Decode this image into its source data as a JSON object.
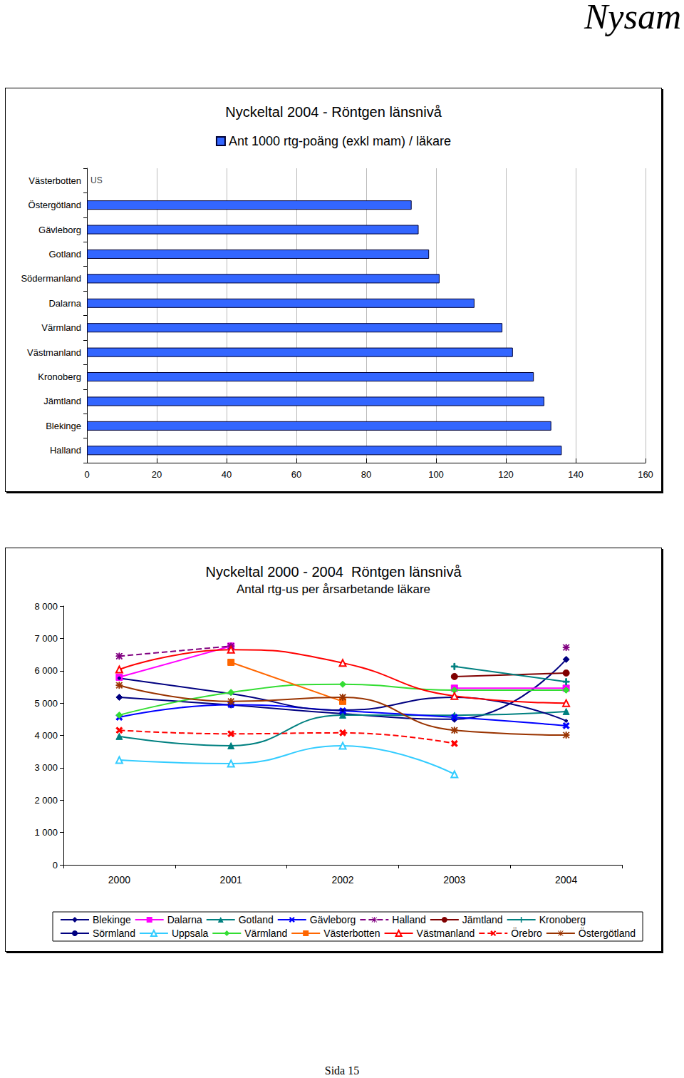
{
  "page": {
    "header": "Nysam",
    "footer": "Sida 15"
  },
  "chart_data": [
    {
      "type": "bar",
      "orientation": "horizontal",
      "title": "Nyckeltal 2004 - Röntgen länsnivå",
      "categories": [
        "Västerbotten",
        "Östergötland",
        "Gävleborg",
        "Gotland",
        "Södermanland",
        "Dalarna",
        "Värmland",
        "Västmanland",
        "Kronoberg",
        "Jämtland",
        "Blekinge",
        "Halland"
      ],
      "series": [
        {
          "name": "Ant 1000 rtg-poäng (exkl mam) / läkare",
          "color": "#3366ff",
          "values": [
            null,
            93,
            95,
            98,
            101,
            111,
            119,
            122,
            128,
            131,
            133,
            136
          ]
        }
      ],
      "annotations": [
        {
          "category": "Västerbotten",
          "text": "US"
        }
      ],
      "xlim": [
        0,
        160
      ],
      "xticks": [
        0,
        20,
        40,
        60,
        80,
        100,
        120,
        140,
        160
      ],
      "grid": true,
      "legend": "top"
    },
    {
      "type": "line",
      "title": "Nyckeltal 2000 - 2004  Röntgen länsnivå",
      "subtitle": "Antal rtg-us per årsarbetande läkare",
      "categories": [
        "2000",
        "2001",
        "2002",
        "2003",
        "2004"
      ],
      "series": [
        {
          "name": "Blekinge",
          "color": "#000080",
          "marker": "diamond",
          "line_style": "solid",
          "values": [
            5180,
            4940,
            4670,
            4500,
            6350
          ]
        },
        {
          "name": "Dalarna",
          "color": "#ff00ff",
          "marker": "square",
          "line_style": "solid",
          "values": [
            5800,
            6760,
            null,
            5460,
            5460
          ]
        },
        {
          "name": "Gotland",
          "color": "#008080",
          "marker": "triangle",
          "line_style": "solid",
          "values": [
            3970,
            3680,
            4630,
            4620,
            4740
          ]
        },
        {
          "name": "Gävleborg",
          "color": "#0000ff",
          "marker": "x",
          "line_style": "solid",
          "values": [
            4560,
            4950,
            4760,
            4560,
            4300
          ]
        },
        {
          "name": "Halland",
          "color": "#800080",
          "marker": "star",
          "line_style": "dashed",
          "values": [
            6450,
            6760,
            null,
            null,
            6720
          ]
        },
        {
          "name": "Jämtland",
          "color": "#800000",
          "marker": "circle",
          "line_style": "solid",
          "values": [
            null,
            null,
            null,
            5820,
            5930
          ]
        },
        {
          "name": "Kronoberg",
          "color": "#008080",
          "marker": "plus",
          "line_style": "solid",
          "values": [
            null,
            null,
            null,
            6130,
            5660
          ]
        },
        {
          "name": "Sörmland",
          "color": "#000080",
          "marker": "dot",
          "line_style": "solid",
          "values": [
            5770,
            5290,
            4780,
            5180,
            4450
          ]
        },
        {
          "name": "Uppsala",
          "color": "#33ccff",
          "marker": "triangle_open",
          "line_style": "solid",
          "values": [
            3240,
            3130,
            3680,
            2800,
            null
          ]
        },
        {
          "name": "Värmland",
          "color": "#33dd33",
          "marker": "diamond",
          "line_style": "solid",
          "values": [
            4630,
            5330,
            5580,
            5400,
            5400
          ]
        },
        {
          "name": "Västerbotten",
          "color": "#ff6600",
          "marker": "square",
          "line_style": "solid",
          "values": [
            null,
            6260,
            5050,
            null,
            null
          ]
        },
        {
          "name": "Västmanland",
          "color": "#ff0000",
          "marker": "triangle_open",
          "line_style": "solid",
          "values": [
            6040,
            6650,
            6240,
            5220,
            5000
          ]
        },
        {
          "name": "Örebro",
          "color": "#ff0000",
          "marker": "x",
          "line_style": "dashed",
          "values": [
            4160,
            4050,
            4080,
            3750,
            null
          ]
        },
        {
          "name": "Östergötland",
          "color": "#993300",
          "marker": "star",
          "line_style": "solid",
          "values": [
            5550,
            5050,
            5180,
            4160,
            4010
          ]
        }
      ],
      "ylim": [
        0,
        8000
      ],
      "yticks": [
        0,
        {
          "value": 1000,
          "label": "1 000"
        },
        {
          "value": 2000,
          "label": "2 000"
        },
        {
          "value": 3000,
          "label": "3 000"
        },
        {
          "value": 4000,
          "label": "4 000"
        },
        {
          "value": 5000,
          "label": "5 000"
        },
        {
          "value": 6000,
          "label": "6 000"
        },
        {
          "value": 7000,
          "label": "7 000"
        },
        {
          "value": 8000,
          "label": "8 000"
        }
      ],
      "grid": false,
      "legend": "bottom"
    }
  ]
}
